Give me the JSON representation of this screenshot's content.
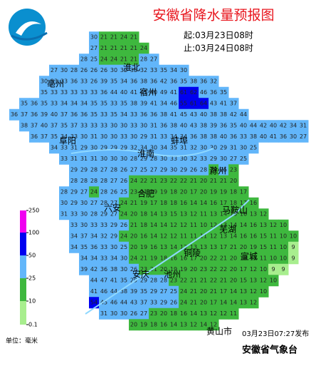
{
  "header": {
    "title": "安徽省降水量预报图",
    "start": "起:03月23日08时",
    "end": "止:03月24日08时"
  },
  "legend": {
    "ticks": [
      250,
      100,
      50,
      25,
      10,
      0.1
    ],
    "colors": [
      "#f000f0",
      "#0000f0",
      "#62b6fa",
      "#3eb83e",
      "#a8ee8e"
    ]
  },
  "unit": "单位：毫米",
  "issued": "03月23日07:27发布",
  "agency": "安徽省气象台",
  "cities": [
    "淮北",
    "亳州",
    "宿州",
    "阜阳",
    "蚌埠",
    "淮南",
    "滁州",
    "合肥",
    "六安",
    "马鞍山",
    "芜湖",
    "铜陵",
    "宣城",
    "安庆",
    "池州",
    "黄山市"
  ],
  "grid": {
    "rows": [
      [
        30,
        21,
        21,
        24,
        21
      ],
      [
        27,
        21,
        21,
        21,
        21,
        24
      ],
      [
        28,
        25,
        24,
        24,
        21,
        21,
        28,
        27
      ],
      [
        27,
        30,
        28,
        26,
        26,
        26,
        30,
        32,
        35,
        32,
        33,
        35,
        34,
        30
      ],
      [
        30,
        33,
        33,
        36,
        33,
        26,
        39,
        35,
        34,
        36,
        38,
        36,
        42,
        36,
        35,
        38,
        36,
        32
      ],
      [
        35,
        33,
        33,
        33,
        33,
        33,
        36,
        44,
        40,
        41,
        41,
        40,
        49,
        41,
        61,
        62,
        46,
        36,
        35
      ],
      [
        35,
        36,
        35,
        33,
        34,
        34,
        34,
        35,
        35,
        33,
        35,
        38,
        39,
        41,
        34,
        46,
        55,
        61,
        64,
        43,
        41,
        37
      ],
      [
        36,
        37,
        36,
        39,
        40,
        37,
        36,
        36,
        35,
        33,
        35,
        34,
        33,
        36,
        36,
        38,
        41,
        45,
        43,
        40,
        38,
        38,
        42,
        44
      ],
      [
        38,
        37,
        40,
        37,
        35,
        37,
        33,
        33,
        33,
        30,
        30,
        33,
        30,
        31,
        36,
        38,
        40,
        43,
        38,
        39,
        36,
        35,
        40,
        44,
        42,
        40,
        42,
        34,
        31
      ],
      [
        36,
        37,
        35,
        34,
        33,
        30,
        31,
        30,
        30,
        33,
        30,
        29,
        31,
        33,
        34,
        34,
        36,
        38,
        38,
        40,
        36,
        33,
        38,
        40,
        41,
        36,
        30,
        27
      ],
      [
        34,
        33,
        31,
        29,
        30,
        29,
        29,
        29,
        32,
        34,
        30,
        34,
        35,
        31,
        32,
        30,
        30,
        29,
        31,
        30,
        25
      ],
      [
        33,
        31,
        31,
        31,
        30,
        30,
        30,
        28,
        29,
        28,
        30,
        33,
        30,
        32,
        33,
        29,
        30,
        27,
        25
      ],
      [
        29,
        29,
        28,
        27,
        28,
        26,
        27,
        25,
        27,
        29,
        30,
        29,
        26,
        28,
        24,
        25,
        23
      ],
      [
        28,
        28,
        28,
        28,
        27,
        26,
        24,
        22,
        21,
        23,
        22,
        22,
        21,
        20,
        21,
        21,
        20
      ],
      [
        28,
        29,
        27,
        24,
        28,
        26,
        25,
        23,
        21,
        19,
        19,
        18,
        20,
        17,
        20,
        19,
        19,
        18,
        17
      ],
      [
        30,
        29,
        30,
        27,
        28,
        27,
        24,
        21,
        19,
        17,
        18,
        18,
        16,
        14,
        14,
        16,
        17,
        18,
        17,
        16
      ],
      [
        31,
        33,
        30,
        28,
        29,
        27,
        24,
        20,
        18,
        14,
        13,
        15,
        13,
        12,
        11,
        13,
        14,
        16,
        16,
        13,
        12
      ],
      [
        33,
        30,
        33,
        33,
        29,
        26,
        21,
        18,
        14,
        14,
        12,
        12,
        11,
        10,
        12,
        13,
        14,
        14,
        16,
        13,
        12,
        10
      ],
      [
        34,
        37,
        34,
        32,
        29,
        24,
        20,
        16,
        14,
        12,
        12,
        11,
        11,
        11,
        12,
        13,
        14,
        16,
        16,
        15,
        11,
        10,
        10
      ],
      [
        34,
        35,
        36,
        33,
        30,
        25,
        20,
        19,
        16,
        13,
        14,
        13,
        13,
        13,
        13,
        17,
        21,
        20,
        19,
        15,
        11,
        10,
        9
      ],
      [
        34,
        34,
        33,
        34,
        30,
        24,
        21,
        19,
        18,
        16,
        16,
        17,
        20,
        22,
        21,
        20,
        18,
        15,
        11,
        10,
        10,
        9
      ],
      [
        39,
        42,
        36,
        38,
        30,
        26,
        23,
        21,
        20,
        19,
        19,
        20,
        23,
        22,
        22,
        20,
        17,
        12,
        10,
        9,
        9
      ],
      [
        44,
        47,
        41,
        35,
        29,
        29,
        28,
        28,
        23,
        22,
        21,
        21,
        22,
        21,
        20,
        15,
        13,
        12,
        10
      ],
      [
        41,
        46,
        44,
        38,
        39,
        35,
        29,
        27,
        25,
        24,
        21,
        20,
        21,
        17,
        14,
        13,
        12,
        10
      ],
      [
        54,
        45,
        46,
        44,
        43,
        37,
        33,
        29,
        26,
        24,
        21,
        20,
        17,
        14,
        14,
        13,
        12
      ],
      [
        31,
        30,
        30,
        26,
        27,
        23,
        20,
        18,
        16,
        14,
        13,
        12,
        12,
        11
      ],
      [
        20,
        19,
        18,
        16,
        14,
        13,
        12,
        14,
        12
      ]
    ]
  }
}
